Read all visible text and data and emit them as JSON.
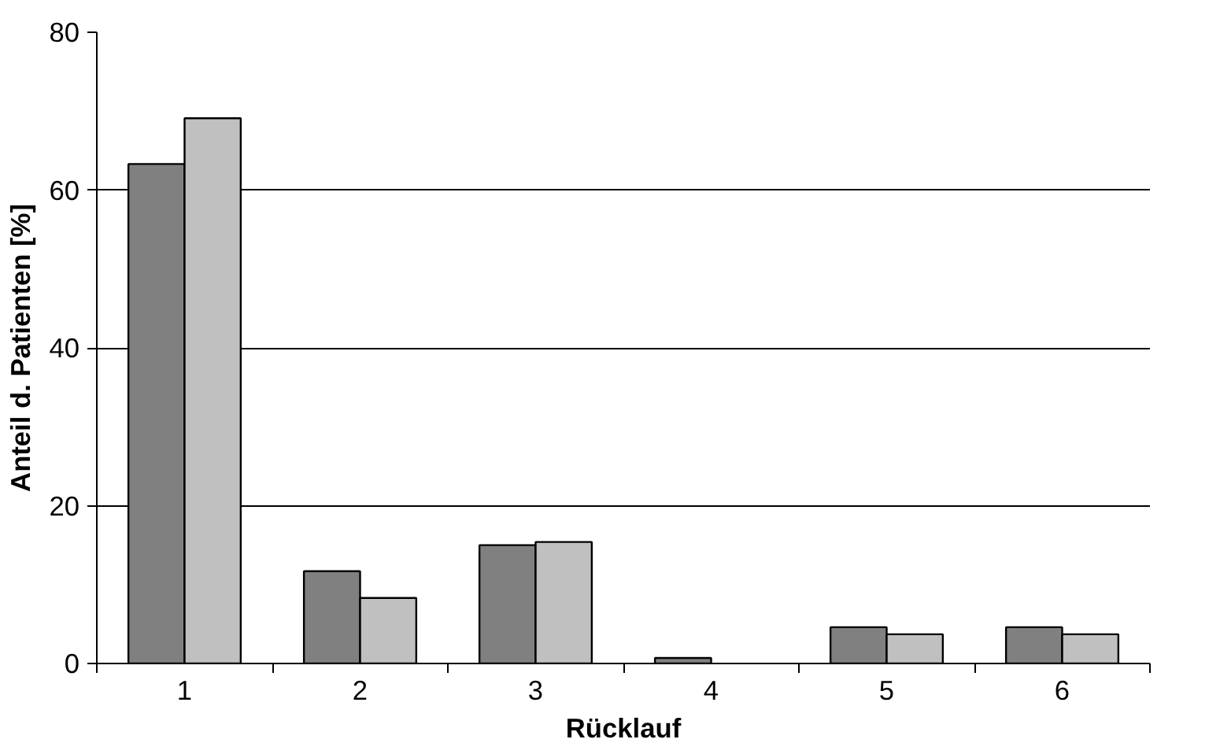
{
  "chart_data": {
    "type": "bar",
    "xlabel": "Rücklauf",
    "ylabel": "Anteil d. Patienten [%]",
    "categories": [
      "1",
      "2",
      "3",
      "4",
      "5",
      "6"
    ],
    "series": [
      {
        "color": "#808080",
        "values": [
          63.3,
          11.7,
          15.0,
          0.7,
          4.6,
          4.6
        ]
      },
      {
        "color": "#c0c0c0",
        "values": [
          69.1,
          8.3,
          15.4,
          null,
          3.7,
          3.7
        ]
      }
    ],
    "ylim": [
      0,
      80
    ],
    "yticks": [
      0,
      20,
      40,
      60,
      80
    ],
    "grid": "y"
  }
}
